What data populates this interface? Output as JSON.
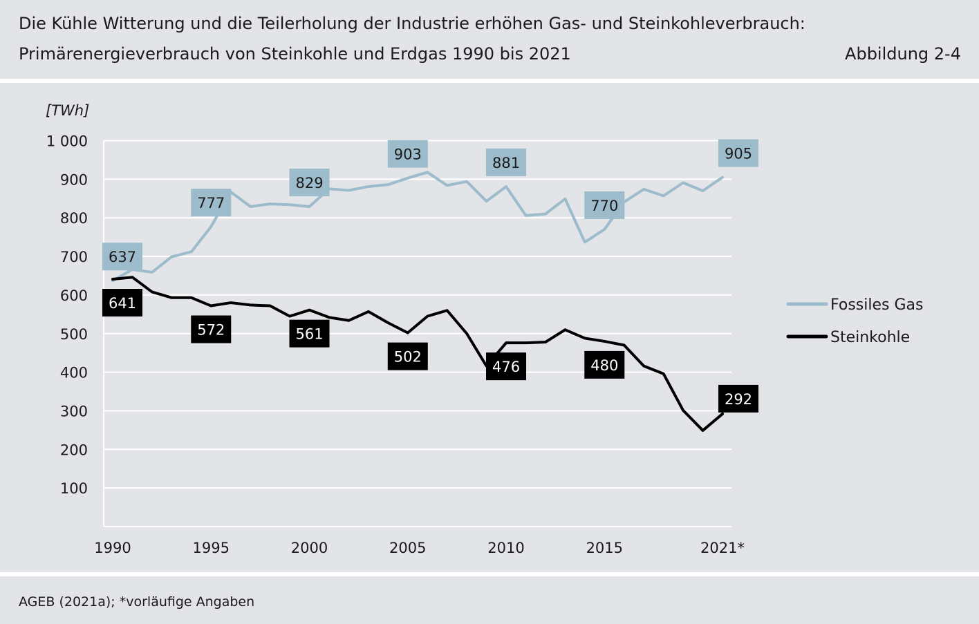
{
  "header": {
    "title": "Die Kühle Witterung und die Teilerholung der Industrie erhöhen Gas- und Steinkohleverbrauch:",
    "subtitle": "Primärenergieverbrauch von Steinkohle und Erdgas 1990 bis 2021",
    "figure_label": "Abbildung 2-4"
  },
  "footer": {
    "source": "AGEB (2021a); *vorläufige Angaben"
  },
  "colors": {
    "background": "#e3e4e8",
    "gas": "#9dbccb",
    "coal": "#000000",
    "grid": "#ffffff",
    "gas_label_bg": "#9dbccb",
    "coal_label_bg": "#000000"
  },
  "chart_data": {
    "type": "line",
    "ylabel": "[TWh]",
    "ylim": [
      0,
      1000
    ],
    "yticks": [
      100,
      200,
      300,
      400,
      500,
      600,
      700,
      800,
      900,
      1000
    ],
    "ytick_labels": [
      "100",
      "200",
      "300",
      "400",
      "500",
      "600",
      "700",
      "800",
      "900",
      "1 000"
    ],
    "xticks": [
      1990,
      1995,
      2000,
      2005,
      2010,
      2015,
      2021
    ],
    "xtick_labels": [
      "1990",
      "1995",
      "2000",
      "2005",
      "2010",
      "2015",
      "2021*"
    ],
    "grid": true,
    "legend_position": "right",
    "x": [
      1990,
      1991,
      1992,
      1993,
      1994,
      1995,
      1996,
      1997,
      1998,
      1999,
      2000,
      2001,
      2002,
      2003,
      2004,
      2005,
      2006,
      2007,
      2008,
      2009,
      2010,
      2011,
      2012,
      2013,
      2014,
      2015,
      2016,
      2017,
      2018,
      2019,
      2020,
      2021
    ],
    "series": [
      {
        "name": "Fossiles Gas",
        "color": "#9dbccb",
        "values": [
          637,
          666,
          659,
          699,
          712,
          777,
          867,
          829,
          836,
          834,
          829,
          875,
          871,
          881,
          886,
          903,
          918,
          884,
          894,
          843,
          881,
          806,
          810,
          849,
          737,
          770,
          841,
          874,
          857,
          891,
          870,
          905
        ],
        "labels": [
          {
            "x": 1990,
            "text": "637"
          },
          {
            "x": 1995,
            "text": "777"
          },
          {
            "x": 2000,
            "text": "829"
          },
          {
            "x": 2005,
            "text": "903"
          },
          {
            "x": 2010,
            "text": "881"
          },
          {
            "x": 2015,
            "text": "770"
          },
          {
            "x": 2021,
            "text": "905"
          }
        ]
      },
      {
        "name": "Steinkohle",
        "color": "#000000",
        "values": [
          641,
          646,
          608,
          593,
          593,
          572,
          580,
          574,
          572,
          545,
          561,
          542,
          534,
          557,
          528,
          502,
          545,
          560,
          500,
          416,
          476,
          476,
          478,
          510,
          488,
          480,
          470,
          416,
          396,
          301,
          249,
          292
        ],
        "labels": [
          {
            "x": 1990,
            "text": "641"
          },
          {
            "x": 1995,
            "text": "572"
          },
          {
            "x": 2000,
            "text": "561"
          },
          {
            "x": 2005,
            "text": "502"
          },
          {
            "x": 2010,
            "text": "476"
          },
          {
            "x": 2015,
            "text": "480"
          },
          {
            "x": 2021,
            "text": "292"
          }
        ]
      }
    ]
  }
}
